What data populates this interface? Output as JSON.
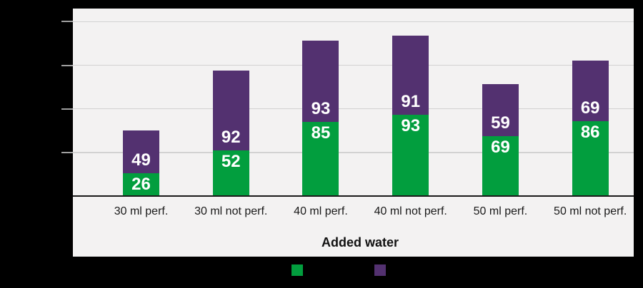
{
  "page": {
    "background": "#000000"
  },
  "chart_data": {
    "type": "bar",
    "stacked": true,
    "categories": [
      "30 ml perf.",
      "30 ml not perf.",
      "40 ml perf.",
      "40 ml not perf.",
      "50 ml perf.",
      "50 ml not perf."
    ],
    "series": [
      {
        "name": "green",
        "color": "#029E3E",
        "values": [
          26,
          52,
          85,
          93,
          69,
          86
        ]
      },
      {
        "name": "purple",
        "color": "#533170",
        "values": [
          49,
          92,
          93,
          91,
          59,
          69
        ]
      }
    ],
    "value_labels": true,
    "value_label_color": "#FFFFFF",
    "title": "",
    "xlabel": "Added water",
    "ylabel": "",
    "ylim": [
      0,
      215
    ],
    "ygridlines": [
      50,
      100,
      150,
      200
    ],
    "ytick_labels_visible": false,
    "grid": true,
    "legend_position": "bottom",
    "legend_labels_visible": false
  },
  "colors": {
    "chart_background": "#F3F2F2",
    "gridline": "#D2D2D2",
    "tick": "#A0A0A0",
    "axis_line": "#1A1A1A",
    "category_text": "#1A1A1A"
  }
}
